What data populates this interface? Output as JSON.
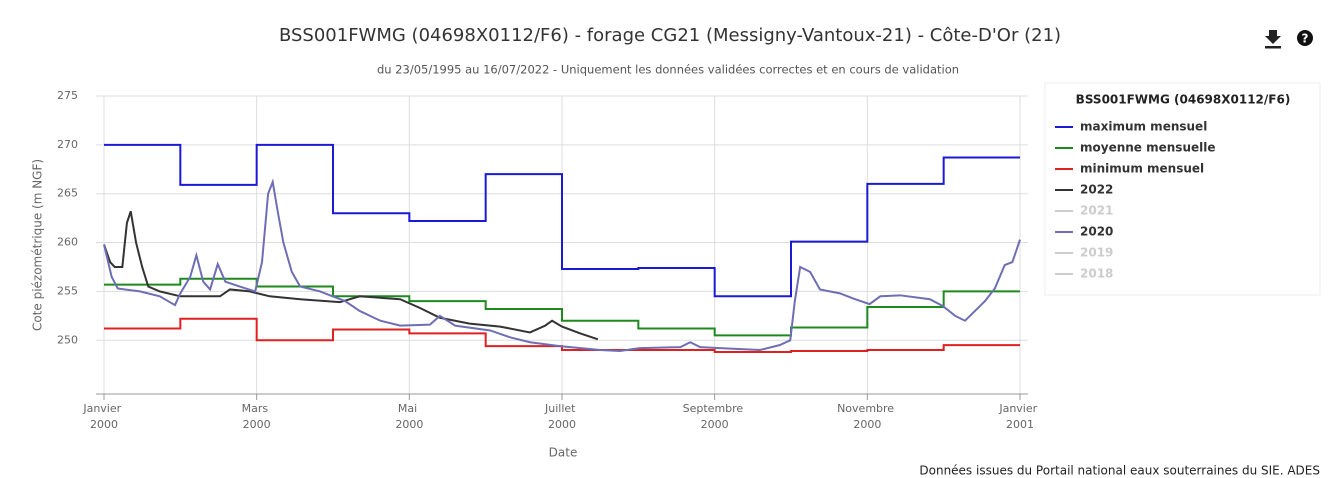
{
  "chart_data": {
    "type": "line",
    "title": "BSS001FWMG (04698X0112/F6) - forage CG21 (Messigny-Vantoux-21) - Côte-D'Or (21)",
    "subtitle": "du 23/05/1995 au 16/07/2022 - Uniquement les données validées correctes et en cours de validation",
    "y_label": "Cote piézométrique (m NGF)",
    "x_label": "Date",
    "credit": "Données issues du Portail national eaux souterraines du SIE. ADES",
    "legend_title": "BSS001FWMG (04698X0112/F6)",
    "grid": true,
    "xlim": [
      0,
      12
    ],
    "xticks": [
      {
        "value": 0,
        "label": "Janvier 2000"
      },
      {
        "value": 2,
        "label": "Mars 2000"
      },
      {
        "value": 4,
        "label": "Mai 2000"
      },
      {
        "value": 6,
        "label": "Juillet 2000"
      },
      {
        "value": 8,
        "label": "Septembre 2000"
      },
      {
        "value": 10,
        "label": "Novembre 2000"
      },
      {
        "value": 12,
        "label": "Janvier 2001"
      }
    ],
    "ylim": [
      244.5,
      275
    ],
    "yticks": [
      250,
      255,
      260,
      265,
      270,
      275
    ],
    "series": [
      {
        "name": "maximum mensuel",
        "color": "#1a1ad6",
        "step": true,
        "visible": true,
        "x": [
          0,
          1,
          2,
          3,
          4,
          5,
          6,
          7,
          8,
          9,
          10,
          11
        ],
        "values": [
          270,
          265.9,
          270,
          263,
          262.2,
          267,
          257.3,
          257.4,
          254.5,
          260.1,
          266,
          268.7
        ]
      },
      {
        "name": "moyenne mensuelle",
        "color": "#1e8a1e",
        "step": true,
        "visible": true,
        "x": [
          0,
          1,
          2,
          3,
          4,
          5,
          6,
          7,
          8,
          9,
          10,
          11
        ],
        "values": [
          255.7,
          256.3,
          255.5,
          254.5,
          254,
          253.2,
          252,
          251.2,
          250.5,
          251.3,
          253.4,
          255
        ]
      },
      {
        "name": "minimum mensuel",
        "color": "#e02020",
        "step": true,
        "visible": true,
        "x": [
          0,
          1,
          2,
          3,
          4,
          5,
          6,
          7,
          8,
          9,
          10,
          11
        ],
        "values": [
          251.2,
          252.2,
          250,
          251.1,
          250.7,
          249.4,
          249,
          249,
          248.8,
          248.9,
          249,
          249.5
        ]
      },
      {
        "name": "2022",
        "color": "#333333",
        "step": false,
        "visible": true,
        "x": [
          0,
          0.08,
          0.14,
          0.24,
          0.3,
          0.35,
          0.42,
          0.5,
          0.58,
          0.73,
          1,
          1.26,
          1.52,
          1.65,
          1.91,
          2.17,
          2.57,
          3.09,
          3.35,
          3.88,
          4.14,
          4.4,
          4.79,
          5.19,
          5.58,
          5.78,
          5.87,
          6,
          6.24,
          6.47
        ],
        "values": [
          259.8,
          258,
          257.5,
          257.5,
          262,
          263.2,
          260,
          257.5,
          255.5,
          255,
          254.5,
          254.5,
          254.5,
          255.2,
          255,
          254.5,
          254.2,
          253.9,
          254.5,
          254.2,
          253.3,
          252.3,
          251.7,
          251.4,
          250.8,
          251.5,
          252,
          251.4,
          250.7,
          250.1
        ]
      },
      {
        "name": "2021",
        "color": "#cccccc",
        "step": false,
        "visible": false,
        "x": [],
        "values": []
      },
      {
        "name": "2020",
        "color": "#6e6eb4",
        "step": false,
        "visible": true,
        "x": [
          0,
          0.1,
          0.18,
          0.47,
          0.73,
          0.93,
          1,
          1.13,
          1.21,
          1.3,
          1.39,
          1.49,
          1.59,
          1.78,
          1.98,
          2.07,
          2.15,
          2.21,
          2.28,
          2.35,
          2.46,
          2.57,
          2.83,
          3.16,
          3.35,
          3.62,
          3.88,
          4.27,
          4.4,
          4.6,
          5.06,
          5.32,
          5.58,
          5.97,
          6.5,
          6.76,
          7.02,
          7.55,
          7.68,
          7.81,
          8.07,
          8.59,
          8.85,
          8.99,
          9.05,
          9.12,
          9.25,
          9.38,
          9.64,
          9.84,
          10.03,
          10.17,
          10.43,
          10.82,
          10.99,
          11.15,
          11.28,
          11.41,
          11.54,
          11.67,
          11.8,
          11.9,
          12
        ],
        "values": [
          259.8,
          256.5,
          255.3,
          255,
          254.5,
          253.6,
          254.8,
          256.5,
          258.7,
          256,
          255.2,
          257.8,
          256,
          255.5,
          255,
          258,
          265,
          266.2,
          263,
          260,
          257,
          255.5,
          255,
          254,
          253,
          252,
          251.5,
          251.6,
          252.5,
          251.5,
          251,
          250.3,
          249.8,
          249.4,
          249,
          248.9,
          249.2,
          249.3,
          249.8,
          249.3,
          249.2,
          249,
          249.5,
          250,
          254,
          257.5,
          257,
          255.2,
          254.8,
          254.2,
          253.7,
          254.5,
          254.6,
          254.2,
          253.5,
          252.5,
          252,
          253,
          254,
          255.3,
          257.7,
          258,
          260.3
        ]
      },
      {
        "name": "2019",
        "color": "#cccccc",
        "step": false,
        "visible": false,
        "x": [],
        "values": []
      },
      {
        "name": "2018",
        "color": "#cccccc",
        "step": false,
        "visible": false,
        "x": [],
        "values": []
      }
    ]
  }
}
